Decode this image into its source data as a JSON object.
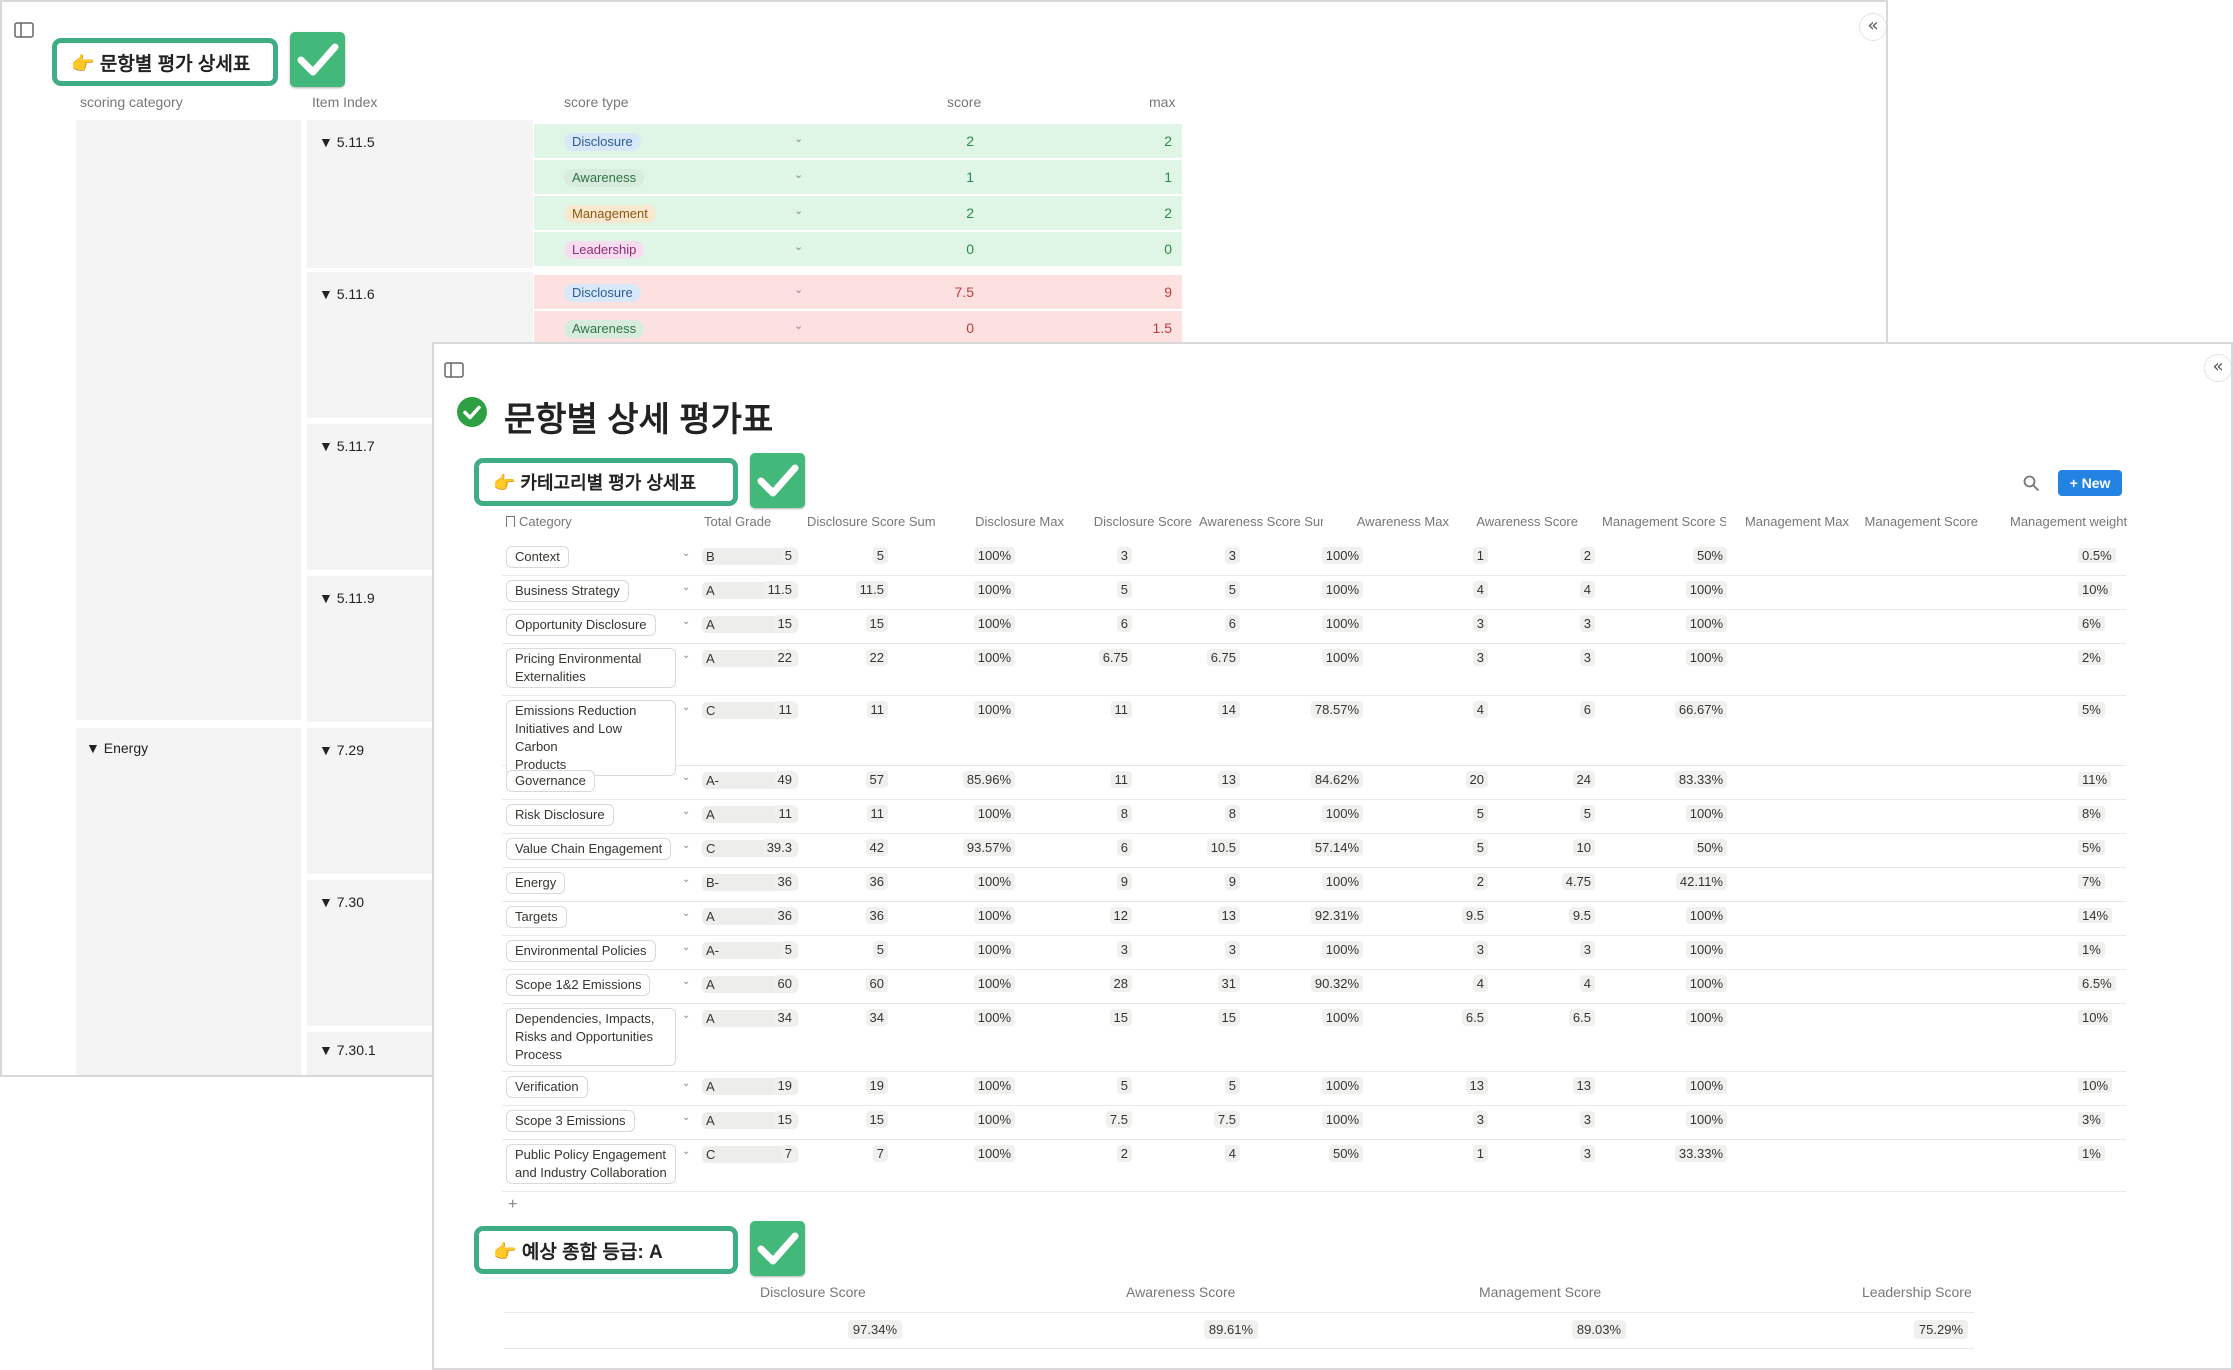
{
  "panel1": {
    "callout": "👉 문항별 평가 상세표",
    "headers": {
      "category": "scoring category",
      "index": "Item Index",
      "type": "score type",
      "score": "score",
      "max": "max"
    },
    "energy_label": "▼  Energy",
    "index_labels": [
      "▼  5.11.5",
      "▼  5.11.6",
      "▼  5.11.7",
      "▼  5.11.9",
      "▼  7.29",
      "▼  7.30",
      "▼  7.30.1"
    ],
    "rows": [
      {
        "type": "Disclosure",
        "score": "2",
        "max": "2"
      },
      {
        "type": "Awareness",
        "score": "1",
        "max": "1"
      },
      {
        "type": "Management",
        "score": "2",
        "max": "2"
      },
      {
        "type": "Leadership",
        "score": "0",
        "max": "0"
      },
      {
        "type": "Disclosure",
        "score": "7.5",
        "max": "9"
      },
      {
        "type": "Awareness",
        "score": "0",
        "max": "1.5"
      }
    ]
  },
  "panel2": {
    "title": "문항별 상세 평가표",
    "callout_category": "👉 카테고리별 평가 상세표",
    "new_button": "+ New",
    "headers": [
      "Category",
      "Total Grade",
      "Disclosure Score Sum",
      "Disclosure Max",
      "Disclosure Score",
      "Awareness Score Sum",
      "Awareness Max",
      "Awareness Score",
      "Management Score Sum",
      "Management Max",
      "Management Score",
      "Management weight"
    ],
    "rows": [
      {
        "cat": [
          "Context"
        ],
        "grade": "B",
        "v": [
          "5",
          "5",
          "100%",
          "3",
          "3",
          "100%",
          "1",
          "2",
          "50%",
          "0.5%"
        ]
      },
      {
        "cat": [
          "Business Strategy"
        ],
        "grade": "A",
        "v": [
          "11.5",
          "11.5",
          "100%",
          "5",
          "5",
          "100%",
          "4",
          "4",
          "100%",
          "10%"
        ]
      },
      {
        "cat": [
          "Opportunity Disclosure"
        ],
        "grade": "A",
        "v": [
          "15",
          "15",
          "100%",
          "6",
          "6",
          "100%",
          "3",
          "3",
          "100%",
          "6%"
        ]
      },
      {
        "cat": [
          "Pricing Environmental",
          "Externalities"
        ],
        "grade": "A",
        "v": [
          "22",
          "22",
          "100%",
          "6.75",
          "6.75",
          "100%",
          "3",
          "3",
          "100%",
          "2%"
        ]
      },
      {
        "cat": [
          "Emissions Reduction",
          "Initiatives and Low Carbon",
          "Products"
        ],
        "grade": "C",
        "v": [
          "11",
          "11",
          "100%",
          "11",
          "14",
          "78.57%",
          "4",
          "6",
          "66.67%",
          "5%"
        ]
      },
      {
        "cat": [
          "Governance"
        ],
        "grade": "A-",
        "v": [
          "49",
          "57",
          "85.96%",
          "11",
          "13",
          "84.62%",
          "20",
          "24",
          "83.33%",
          "11%"
        ]
      },
      {
        "cat": [
          "Risk Disclosure"
        ],
        "grade": "A",
        "v": [
          "11",
          "11",
          "100%",
          "8",
          "8",
          "100%",
          "5",
          "5",
          "100%",
          "8%"
        ]
      },
      {
        "cat": [
          "Value Chain Engagement"
        ],
        "grade": "C",
        "v": [
          "39.3",
          "42",
          "93.57%",
          "6",
          "10.5",
          "57.14%",
          "5",
          "10",
          "50%",
          "5%"
        ]
      },
      {
        "cat": [
          "Energy"
        ],
        "grade": "B-",
        "v": [
          "36",
          "36",
          "100%",
          "9",
          "9",
          "100%",
          "2",
          "4.75",
          "42.11%",
          "7%"
        ]
      },
      {
        "cat": [
          "Targets"
        ],
        "grade": "A",
        "v": [
          "36",
          "36",
          "100%",
          "12",
          "13",
          "92.31%",
          "9.5",
          "9.5",
          "100%",
          "14%"
        ]
      },
      {
        "cat": [
          "Environmental Policies"
        ],
        "grade": "A-",
        "v": [
          "5",
          "5",
          "100%",
          "3",
          "3",
          "100%",
          "3",
          "3",
          "100%",
          "1%"
        ]
      },
      {
        "cat": [
          "Scope 1&2 Emissions"
        ],
        "grade": "A",
        "v": [
          "60",
          "60",
          "100%",
          "28",
          "31",
          "90.32%",
          "4",
          "4",
          "100%",
          "6.5%"
        ]
      },
      {
        "cat": [
          "Dependencies, Impacts,",
          "Risks and Opportunities",
          "Process"
        ],
        "grade": "A",
        "v": [
          "34",
          "34",
          "100%",
          "15",
          "15",
          "100%",
          "6.5",
          "6.5",
          "100%",
          "10%"
        ]
      },
      {
        "cat": [
          "Verification"
        ],
        "grade": "A",
        "v": [
          "19",
          "19",
          "100%",
          "5",
          "5",
          "100%",
          "13",
          "13",
          "100%",
          "10%"
        ]
      },
      {
        "cat": [
          "Scope 3 Emissions"
        ],
        "grade": "A",
        "v": [
          "15",
          "15",
          "100%",
          "7.5",
          "7.5",
          "100%",
          "3",
          "3",
          "100%",
          "3%"
        ]
      },
      {
        "cat": [
          "Public Policy Engagement",
          "and Industry Collaboration"
        ],
        "grade": "C",
        "v": [
          "7",
          "7",
          "100%",
          "2",
          "4",
          "50%",
          "1",
          "3",
          "33.33%",
          "1%"
        ]
      }
    ],
    "add_row": "+",
    "callout_grade": "👉 예상 종합 등급:  A",
    "summary": {
      "headers": [
        "Disclosure Score",
        "Awareness Score",
        "Management Score",
        "Leadership Score"
      ],
      "values": [
        "97.34%",
        "89.61%",
        "89.03%",
        "75.29%"
      ]
    }
  }
}
